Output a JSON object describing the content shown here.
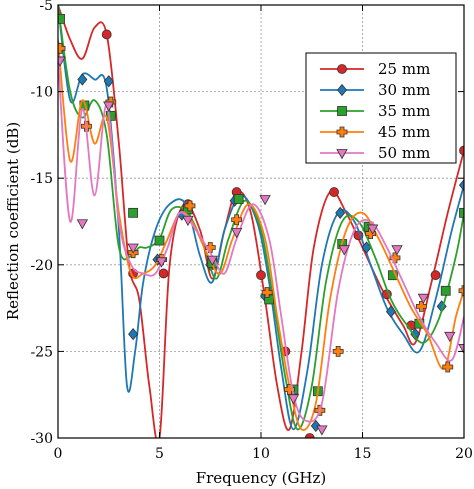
{
  "chart_data": {
    "type": "line",
    "title": "",
    "xlabel": "Frequency (GHz)",
    "ylabel": "Reflection coefficient  (dB)",
    "xlim": [
      0,
      20
    ],
    "ylim": [
      -30,
      -5
    ],
    "xticks": [
      0,
      5,
      10,
      15,
      20
    ],
    "yticks": [
      -5,
      -10,
      -15,
      -20,
      -25,
      -30
    ],
    "xtick_labels": [
      "0",
      "5",
      "10",
      "15",
      "20"
    ],
    "ytick_labels": [
      "-5",
      "-10",
      "-15",
      "-20",
      "-25",
      "-30"
    ],
    "grid": "dashed",
    "legend_position": "top-right",
    "series": [
      {
        "name": "25 mm",
        "color": "#d62728",
        "marker": "circle",
        "x": [
          0,
          0.6,
          1.2,
          1.8,
          2.4,
          3.0,
          3.5,
          4.0,
          4.5,
          5.0,
          5.5,
          6.2,
          7.0,
          7.6,
          8.2,
          8.8,
          9.5,
          10.2,
          10.8,
          11.4,
          12.0,
          12.6,
          13.4,
          14.2,
          15.0,
          16.0,
          17.0,
          17.6,
          18.4,
          19.2,
          20.0
        ],
        "y": [
          -5.0,
          -7.0,
          -8.1,
          -6.3,
          -6.7,
          -13.0,
          -20.0,
          -22.0,
          -27.0,
          -30.0,
          -20.0,
          -16.5,
          -18.0,
          -20.8,
          -18.0,
          -15.8,
          -17.0,
          -22.0,
          -27.0,
          -29.5,
          -25.0,
          -19.0,
          -15.8,
          -17.0,
          -19.0,
          -21.5,
          -23.5,
          -24.5,
          -21.0,
          -17.0,
          -13.4
        ],
        "marker_x": [
          2.4,
          3.7,
          5.2,
          6.4,
          7.6,
          8.8,
          10.0,
          11.2,
          12.4,
          13.6,
          14.8,
          16.2,
          17.4,
          18.6,
          20.0
        ],
        "marker_y": [
          -6.7,
          -20.5,
          -20.5,
          -16.5,
          -20.0,
          -15.8,
          -20.6,
          -25.0,
          -30.0,
          -15.8,
          -18.3,
          -21.7,
          -23.5,
          -20.6,
          -13.4
        ]
      },
      {
        "name": "30 mm",
        "color": "#1f77b4",
        "marker": "diamond",
        "x": [
          0,
          0.6,
          1.2,
          1.8,
          2.4,
          3.0,
          3.4,
          3.8,
          4.2,
          4.8,
          5.5,
          6.3,
          7.0,
          7.6,
          8.2,
          9.0,
          9.8,
          10.4,
          11.0,
          11.6,
          12.3,
          13.0,
          13.8,
          14.6,
          15.4,
          16.2,
          17.0,
          17.8,
          18.6,
          19.4,
          20.0
        ],
        "y": [
          -5.0,
          -10.5,
          -9.0,
          -9.3,
          -9.8,
          -18.0,
          -27.0,
          -25.0,
          -21.0,
          -18.0,
          -16.5,
          -16.5,
          -19.5,
          -21.0,
          -18.0,
          -16.0,
          -17.5,
          -21.0,
          -26.0,
          -29.5,
          -26.0,
          -20.0,
          -17.0,
          -17.5,
          -20.0,
          -22.5,
          -24.0,
          -25.0,
          -22.0,
          -18.0,
          -15.4
        ],
        "marker_x": [
          1.2,
          2.5,
          3.7,
          4.9,
          6.1,
          7.5,
          8.7,
          10.2,
          11.5,
          12.7,
          13.9,
          15.2,
          16.4,
          17.6,
          18.9,
          20.0
        ],
        "marker_y": [
          -9.3,
          -9.4,
          -24.0,
          -19.7,
          -17.1,
          -20.0,
          -16.3,
          -21.8,
          -27.2,
          -29.3,
          -17.0,
          -19.0,
          -22.7,
          -24.0,
          -22.4,
          -15.4
        ]
      },
      {
        "name": "35 mm",
        "color": "#2ca02c",
        "marker": "square",
        "x": [
          0,
          0.6,
          1.2,
          1.8,
          2.4,
          3.0,
          3.6,
          4.0,
          4.4,
          5.0,
          5.6,
          6.4,
          7.2,
          7.8,
          8.4,
          9.2,
          10.0,
          10.6,
          11.2,
          11.8,
          12.5,
          13.2,
          14.0,
          14.8,
          15.6,
          16.4,
          17.2,
          18.0,
          18.8,
          19.6,
          20.0
        ],
        "y": [
          -5.0,
          -10.0,
          -11.5,
          -10.5,
          -12.5,
          -19.0,
          -19.5,
          -19.0,
          -19.0,
          -18.5,
          -16.8,
          -17.0,
          -19.0,
          -20.8,
          -18.5,
          -16.3,
          -18.0,
          -22.0,
          -26.5,
          -29.5,
          -27.0,
          -21.0,
          -17.5,
          -17.5,
          -19.5,
          -22.0,
          -23.5,
          -24.5,
          -23.0,
          -19.5,
          -17.0
        ],
        "marker_x": [
          0.1,
          1.3,
          2.6,
          3.7,
          5.0,
          6.4,
          7.6,
          8.9,
          10.4,
          11.6,
          12.8,
          14.0,
          15.3,
          16.5,
          17.8,
          19.1,
          20.0
        ],
        "marker_y": [
          -5.8,
          -10.8,
          -11.4,
          -17.0,
          -18.6,
          -16.8,
          -19.9,
          -16.2,
          -22.0,
          -27.2,
          -27.3,
          -18.8,
          -17.8,
          -20.6,
          -23.4,
          -21.5,
          -17.0
        ]
      },
      {
        "name": "45 mm",
        "color": "#ff7f0e",
        "marker": "plus",
        "x": [
          0,
          0.6,
          1.2,
          1.8,
          2.4,
          3.0,
          3.6,
          4.2,
          4.8,
          5.4,
          6.0,
          6.6,
          7.4,
          8.0,
          8.6,
          9.4,
          10.2,
          10.8,
          11.4,
          12.0,
          12.7,
          13.4,
          14.2,
          15.0,
          15.8,
          16.6,
          17.4,
          18.2,
          19.0,
          19.6,
          20.0
        ],
        "y": [
          -7.0,
          -14.0,
          -10.5,
          -13.0,
          -11.5,
          -17.0,
          -20.5,
          -20.5,
          -20.0,
          -18.5,
          -17.0,
          -17.5,
          -19.5,
          -20.5,
          -18.5,
          -16.5,
          -18.5,
          -23.0,
          -27.0,
          -29.5,
          -28.0,
          -22.0,
          -18.0,
          -17.0,
          -18.5,
          -20.5,
          -22.5,
          -24.0,
          -26.0,
          -23.0,
          -21.5
        ],
        "marker_x": [
          0.1,
          1.4,
          2.6,
          3.7,
          5.1,
          6.5,
          7.5,
          8.8,
          10.3,
          11.4,
          12.9,
          13.8,
          15.4,
          16.6,
          17.9,
          19.2,
          20.0
        ],
        "marker_y": [
          -7.5,
          -12.0,
          -10.6,
          -19.3,
          -19.7,
          -16.6,
          -19.0,
          -17.4,
          -21.6,
          -27.2,
          -28.4,
          -25.0,
          -18.2,
          -19.6,
          -22.4,
          -25.9,
          -21.5
        ]
      },
      {
        "name": "50 mm",
        "color": "#e377c2",
        "marker": "triangle-down",
        "x": [
          0,
          0.6,
          1.2,
          1.8,
          2.4,
          3.0,
          3.6,
          4.2,
          4.8,
          5.4,
          6.0,
          6.8,
          7.6,
          8.2,
          8.8,
          9.6,
          10.4,
          11.0,
          11.6,
          12.2,
          13.0,
          13.8,
          14.6,
          15.4,
          16.2,
          17.0,
          17.8,
          18.6,
          19.4,
          20.0
        ],
        "y": [
          -8.0,
          -17.5,
          -11.0,
          -16.0,
          -10.8,
          -17.5,
          -20.0,
          -20.5,
          -20.5,
          -19.0,
          -17.0,
          -18.0,
          -19.5,
          -20.5,
          -18.5,
          -16.5,
          -18.5,
          -23.0,
          -27.5,
          -29.0,
          -28.0,
          -21.5,
          -18.0,
          -17.5,
          -19.0,
          -21.0,
          -23.0,
          -24.5,
          -25.5,
          -23.0
        ],
        "marker_x": [
          0.1,
          1.2,
          2.5,
          3.7,
          5.1,
          6.4,
          7.6,
          8.8,
          10.2,
          11.6,
          13.0,
          14.1,
          15.5,
          16.7,
          18.0,
          19.3,
          20.0
        ],
        "marker_y": [
          -8.2,
          -17.6,
          -10.8,
          -19.0,
          -19.8,
          -17.4,
          -19.7,
          -18.1,
          -16.2,
          -27.7,
          -29.5,
          -19.1,
          -17.9,
          -19.1,
          -21.9,
          -24.1,
          -24.8
        ]
      }
    ]
  }
}
